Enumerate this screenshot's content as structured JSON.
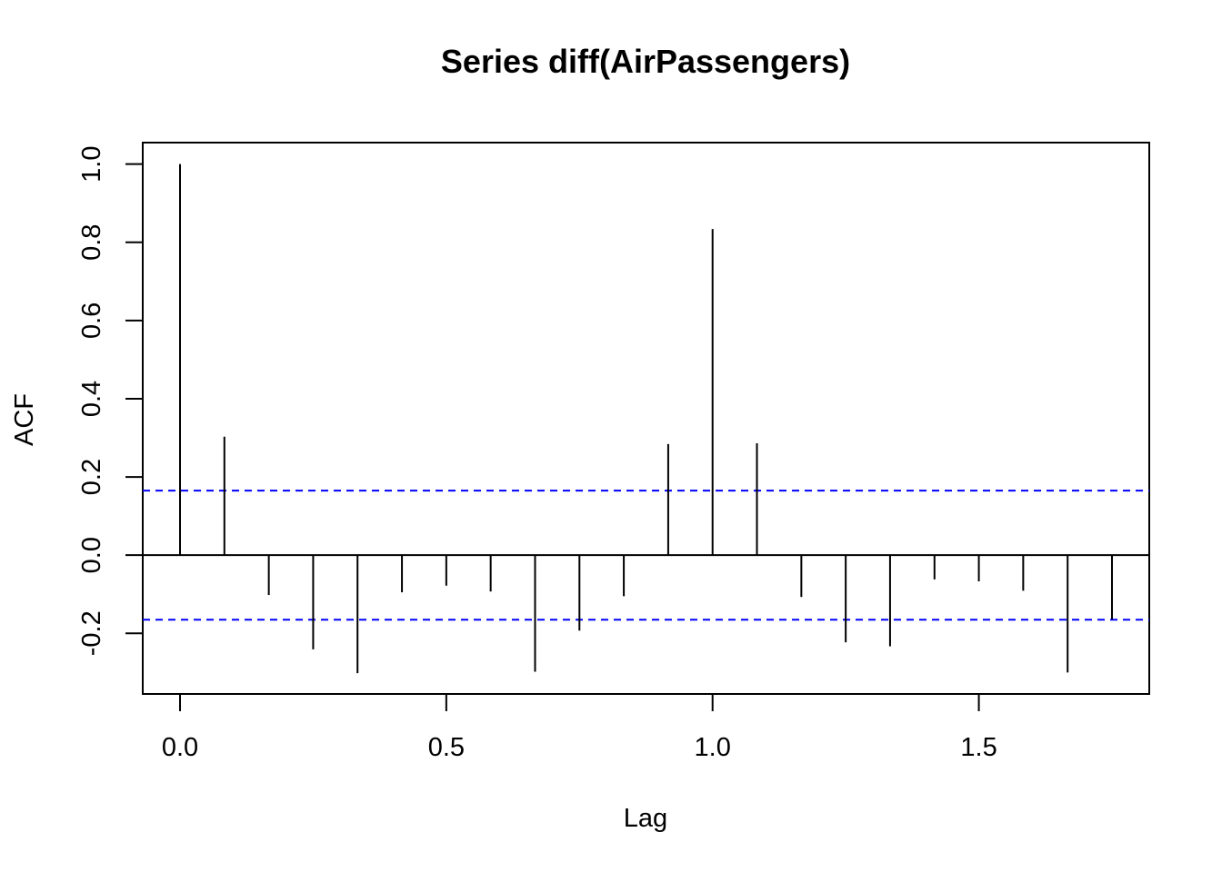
{
  "chart_data": {
    "type": "bar",
    "title": "Series  diff(AirPassengers)",
    "xlabel": "Lag",
    "ylabel": "ACF",
    "xlim": [
      -0.07,
      1.82
    ],
    "ylim": [
      -0.355,
      1.055
    ],
    "xticks": [
      "0.0",
      "0.5",
      "1.0",
      "1.5"
    ],
    "xtick_values": [
      0,
      0.5,
      1.0,
      1.5
    ],
    "yticks": [
      "-0.2",
      "0.0",
      "0.2",
      "0.4",
      "0.6",
      "0.8",
      "1.0"
    ],
    "ytick_values": [
      -0.2,
      0,
      0.2,
      0.4,
      0.6,
      0.8,
      1.0
    ],
    "lags": [
      0,
      0.0833,
      0.1667,
      0.25,
      0.3333,
      0.4167,
      0.5,
      0.5833,
      0.6667,
      0.75,
      0.8333,
      0.9167,
      1.0,
      1.0833,
      1.1667,
      1.25,
      1.3333,
      1.4167,
      1.5,
      1.5833,
      1.6667,
      1.75
    ],
    "acf": [
      1.0,
      0.303,
      -0.102,
      -0.241,
      -0.302,
      -0.095,
      -0.078,
      -0.093,
      -0.298,
      -0.193,
      -0.105,
      0.284,
      0.834,
      0.286,
      -0.107,
      -0.223,
      -0.233,
      -0.062,
      -0.067,
      -0.091,
      -0.3,
      -0.164
    ],
    "confidence_bound": 0.165,
    "confidence_color": "#0000ff",
    "grid": false,
    "zero_line": true
  }
}
